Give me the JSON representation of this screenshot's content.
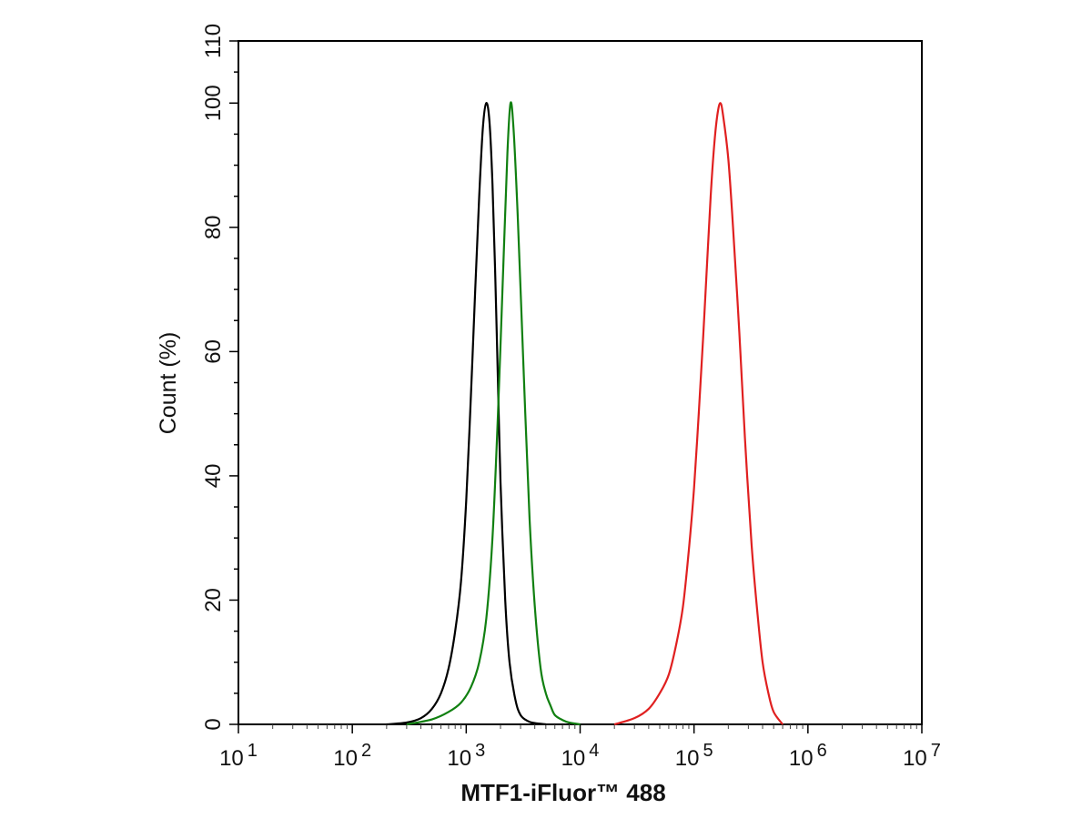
{
  "chart_data": {
    "type": "line",
    "xlabel": "MTF1-iFluor™ 488",
    "ylabel": "Count  (%)",
    "x_scale": "log",
    "xlim": [
      10,
      10000000
    ],
    "ylim": [
      0,
      110
    ],
    "grid": false,
    "x_ticks": [
      {
        "base": "10",
        "exp": "1"
      },
      {
        "base": "10",
        "exp": "2"
      },
      {
        "base": "10",
        "exp": "3"
      },
      {
        "base": "10",
        "exp": "4"
      },
      {
        "base": "10",
        "exp": "5"
      },
      {
        "base": "10",
        "exp": "6"
      },
      {
        "base": "10",
        "exp": "7"
      }
    ],
    "y_ticks": [
      "0",
      "20",
      "40",
      "60",
      "80",
      "100",
      "110"
    ],
    "series": [
      {
        "color": "#000000",
        "x": [
          200,
          300,
          400,
          500,
          600,
          700,
          800,
          900,
          1000,
          1100,
          1200,
          1300,
          1400,
          1500,
          1600,
          1700,
          1800,
          1900,
          2000,
          2200,
          2400,
          2700,
          3000,
          3500,
          4000,
          5000
        ],
        "y": [
          0,
          0.3,
          1.0,
          2.5,
          5,
          9,
          15,
          23,
          36,
          53,
          70,
          85,
          96,
          100,
          97,
          87,
          72,
          55,
          39,
          20,
          10,
          4,
          1.5,
          0.5,
          0.2,
          0
        ]
      },
      {
        "color": "#118011",
        "x": [
          300,
          500,
          700,
          900,
          1100,
          1300,
          1500,
          1700,
          1900,
          2100,
          2300,
          2450,
          2600,
          2800,
          3000,
          3300,
          3600,
          4000,
          4500,
          5000,
          5500,
          6000,
          7000,
          8000,
          10000
        ],
        "y": [
          0,
          0.8,
          2,
          3.5,
          6,
          10,
          17,
          30,
          50,
          72,
          92,
          100,
          96,
          84,
          70,
          50,
          33,
          19,
          9,
          5,
          3,
          1.5,
          0.7,
          0.3,
          0
        ]
      },
      {
        "color": "#e02020",
        "x": [
          20000,
          30000,
          40000,
          50000,
          60000,
          70000,
          80000,
          90000,
          100000,
          110000,
          120000,
          130000,
          140000,
          150000,
          160000,
          170000,
          180000,
          200000,
          220000,
          250000,
          280000,
          320000,
          360000,
          400000,
          450000,
          500000,
          600000
        ],
        "y": [
          0,
          1,
          2.5,
          5,
          8,
          13,
          19,
          28,
          38,
          50,
          62,
          74,
          85,
          93,
          98,
          100,
          98,
          91,
          80,
          63,
          46,
          29,
          18,
          10,
          5,
          2,
          0
        ]
      }
    ]
  }
}
